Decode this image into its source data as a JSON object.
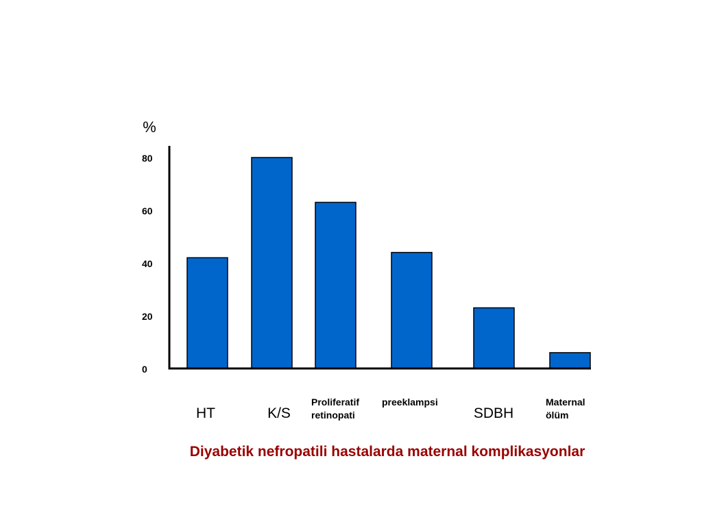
{
  "slide": {
    "caption": "Diyabetik nefropatili hastalarda maternal komplikasyonlar",
    "caption_color": "#990000"
  },
  "chart_data": {
    "type": "bar",
    "ylabel": "%",
    "ylim": [
      0,
      80
    ],
    "yticks": [
      0,
      20,
      40,
      60,
      80
    ],
    "grid": false,
    "bar_color": "#0066CC",
    "categories": [
      [
        "HT"
      ],
      [
        "K/S"
      ],
      [
        "Proliferatif",
        "retinopati"
      ],
      [
        "preeklampsi"
      ],
      [
        "SDBH"
      ],
      [
        "Maternal",
        "ölüm"
      ]
    ],
    "values": [
      42,
      80,
      63,
      44,
      23,
      6
    ]
  }
}
